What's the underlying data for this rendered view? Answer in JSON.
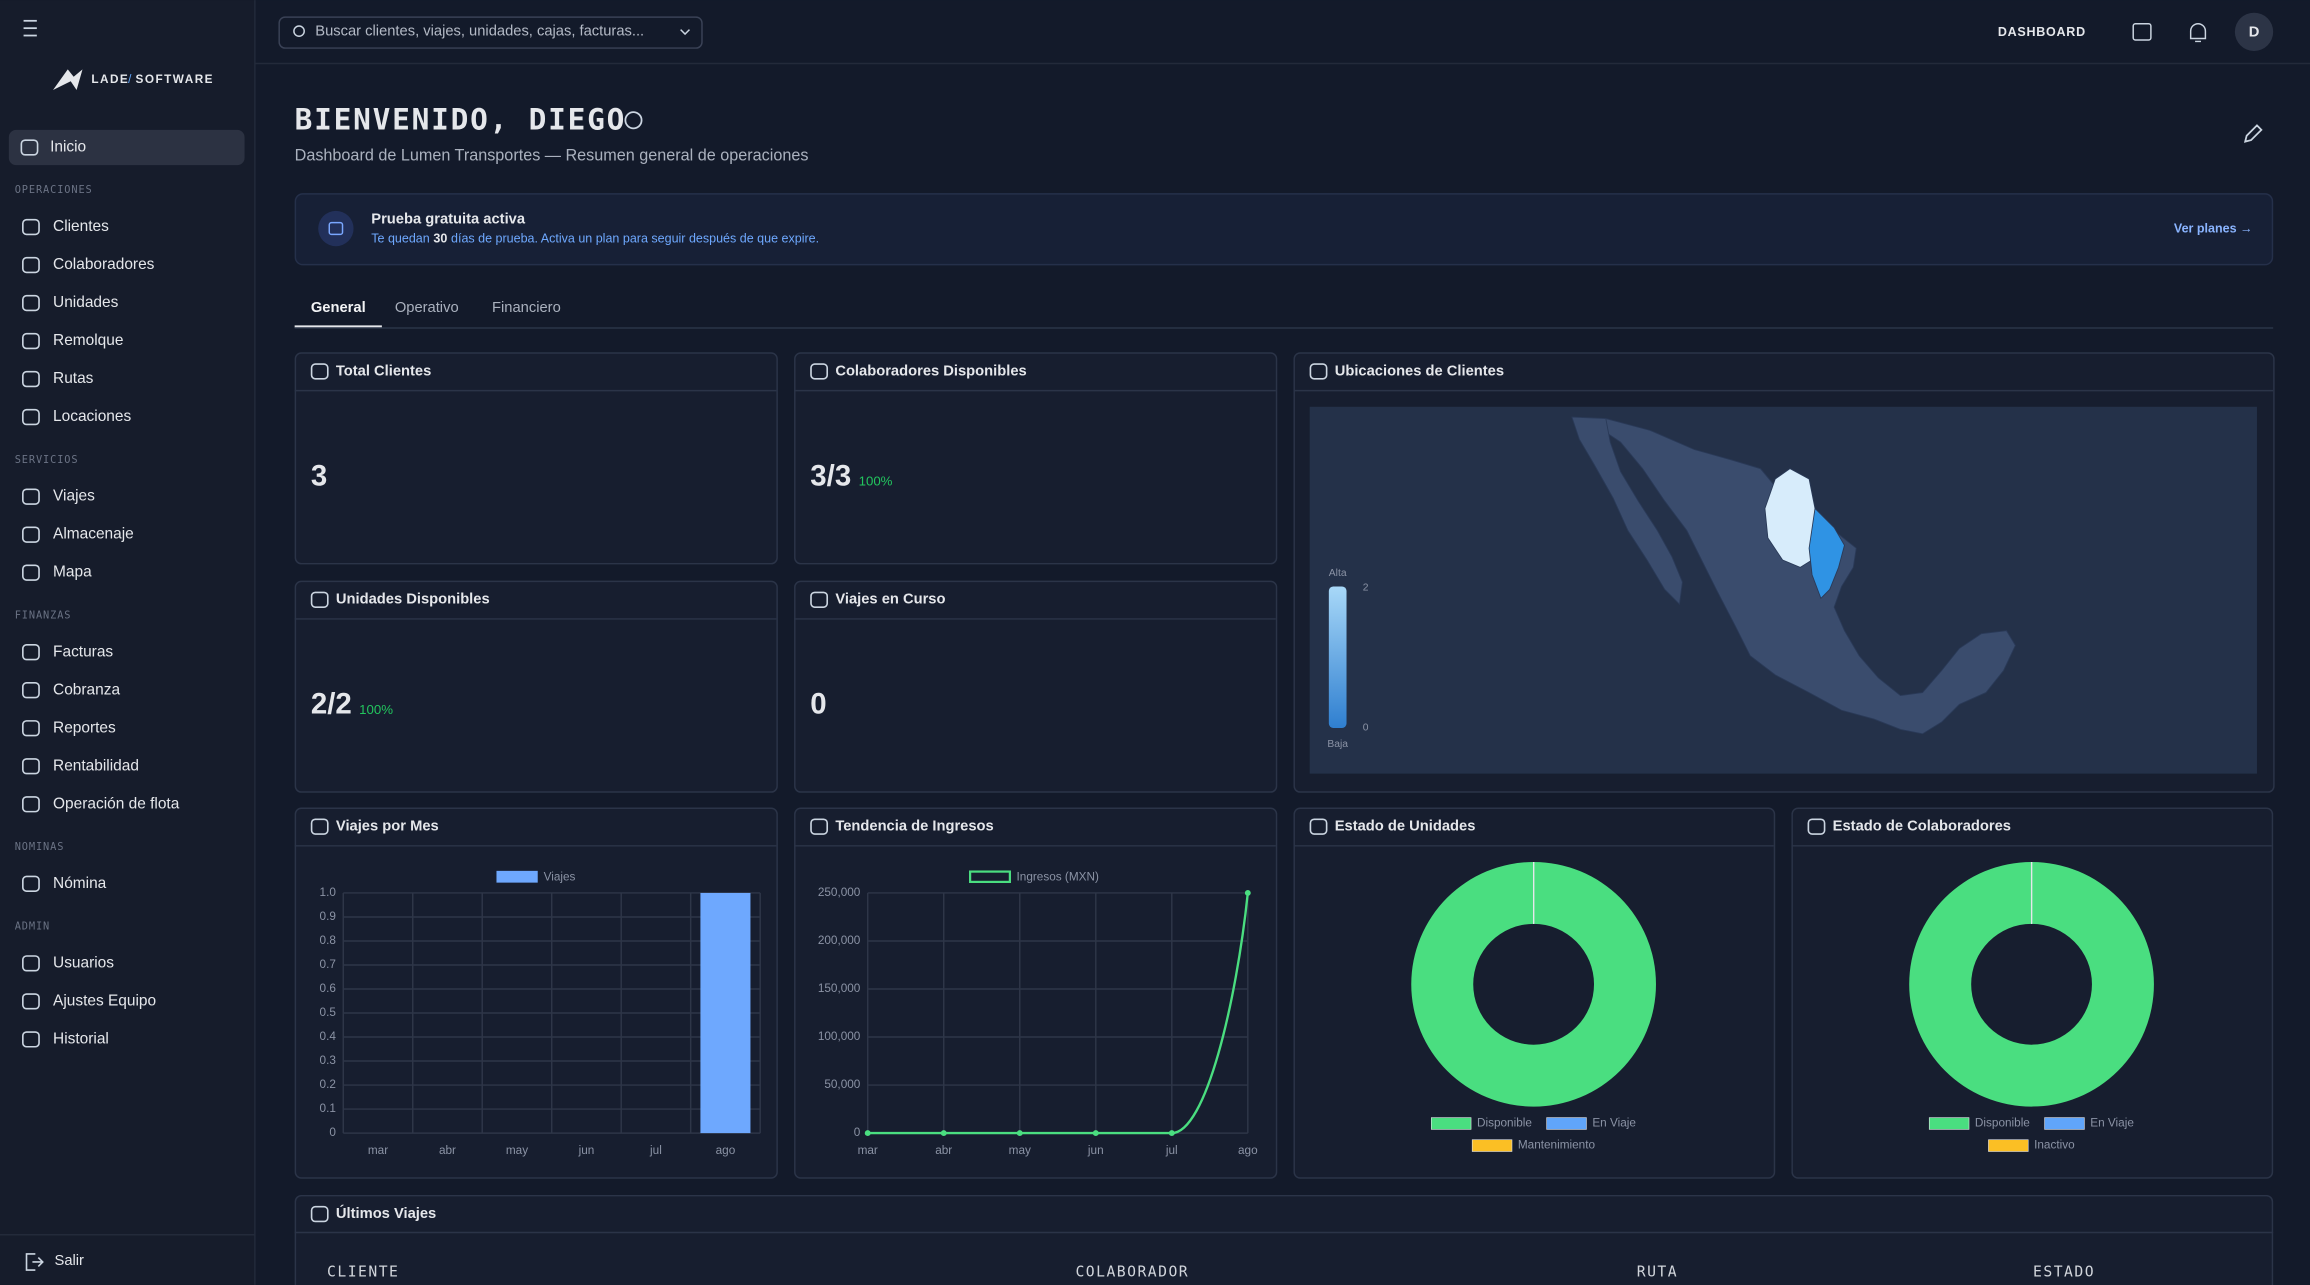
{
  "sidebar": {
    "brand": [
      "LADE",
      "/",
      "SOFTWARE"
    ],
    "home": "Inicio",
    "sections": [
      {
        "title": "OPERACIONES",
        "items": [
          "Clientes",
          "Colaboradores",
          "Unidades",
          "Remolque",
          "Rutas",
          "Locaciones"
        ]
      },
      {
        "title": "SERVICIOS",
        "items": [
          "Viajes",
          "Almacenaje",
          "Mapa"
        ]
      },
      {
        "title": "FINANZAS",
        "items": [
          "Facturas",
          "Cobranza",
          "Reportes",
          "Rentabilidad",
          "Operación de flota"
        ]
      },
      {
        "title": "NOMINAS",
        "items": [
          "Nómina"
        ]
      },
      {
        "title": "ADMIN",
        "items": [
          "Usuarios",
          "Ajustes Equipo",
          "Historial"
        ]
      }
    ],
    "logout": "Salir"
  },
  "topbar": {
    "search_placeholder": "Buscar clientes, viajes, unidades, cajas, facturas...",
    "nav": "DASHBOARD",
    "avatar": "D"
  },
  "header": {
    "title": "BIENVENIDO, DIEGO",
    "subtitle": "Dashboard de Lumen Transportes — Resumen general de operaciones"
  },
  "trial": {
    "title": "Prueba gratuita activa",
    "text_before": "Te quedan",
    "days": 30,
    "text_after": "días de prueba. Activa un plan para seguir después de que expire.",
    "link": "Ver planes →"
  },
  "tabs": [
    "General",
    "Operativo",
    "Financiero"
  ],
  "active_tab": 0,
  "cards": [
    {
      "title": "Total Clientes",
      "value": 3
    },
    {
      "title": "Colaboradores Disponibles",
      "value": "3/3",
      "percent": "100%"
    },
    {
      "title": "Unidades Disponibles",
      "value": "2/2",
      "percent": "100%"
    },
    {
      "title": "Viajes en Curso",
      "value": 0
    }
  ],
  "map": {
    "title": "Ubicaciones de Clientes",
    "legend": {
      "high": "Alta",
      "low": "Baja",
      "max": 2,
      "min": 0
    }
  },
  "chart_data": [
    {
      "type": "bar",
      "title": "Viajes por Mes",
      "categories": [
        "mar",
        "abr",
        "may",
        "jun",
        "jul",
        "ago"
      ],
      "series": [
        {
          "name": "Viajes",
          "color": "#6ea8fe",
          "values": [
            0,
            0,
            0,
            0,
            0,
            1
          ]
        }
      ],
      "ylim": [
        0,
        1
      ],
      "yticks": [
        0,
        0.1,
        0.2,
        0.3,
        0.4,
        0.5,
        0.6,
        0.7,
        0.8,
        0.9,
        {
          "value": 1,
          "label": "1.0"
        }
      ],
      "grid": true
    },
    {
      "type": "line",
      "title": "Tendencia de Ingresos",
      "categories": [
        "mar",
        "abr",
        "may",
        "jun",
        "jul",
        "ago"
      ],
      "series": [
        {
          "name": "Ingresos (MXN)",
          "color": "#4ade80",
          "values": [
            0,
            0,
            0,
            0,
            0,
            250000
          ]
        }
      ],
      "ylim": [
        0,
        250000
      ],
      "yticks": [
        0,
        {
          "value": 50000,
          "label": "50,000"
        },
        {
          "value": 100000,
          "label": "100,000"
        },
        {
          "value": 150000,
          "label": "150,000"
        },
        {
          "value": 200000,
          "label": "200,000"
        },
        {
          "value": 250000,
          "label": "250,000"
        }
      ],
      "grid": true
    },
    {
      "type": "doughnut",
      "title": "Estado de Unidades",
      "categories": [
        "Disponible",
        "En Viaje",
        "Mantenimiento"
      ],
      "values": [
        2,
        0,
        0
      ],
      "colors": [
        "#4ade80",
        "#60a5fa",
        "#fbbf24"
      ]
    },
    {
      "type": "doughnut",
      "title": "Estado de Colaboradores",
      "categories": [
        "Disponible",
        "En Viaje",
        "Inactivo"
      ],
      "values": [
        3,
        0,
        0
      ],
      "colors": [
        "#4ade80",
        "#60a5fa",
        "#fbbf24"
      ]
    }
  ],
  "table": {
    "title": "Últimos Viajes",
    "columns": [
      "CLIENTE",
      "COLABORADOR",
      "RUTA",
      "ESTADO"
    ]
  }
}
